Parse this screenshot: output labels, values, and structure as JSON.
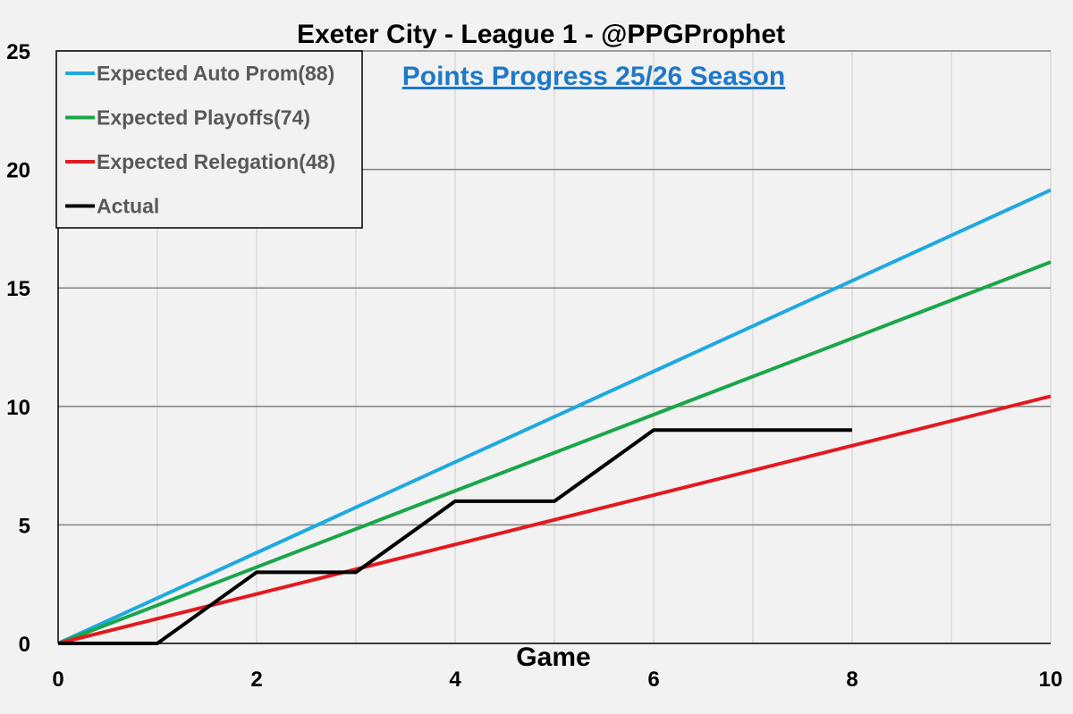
{
  "chart_data": {
    "type": "line",
    "title": "Exeter City - League 1 - @PPGProphet",
    "subtitle": "Points Progress 25/26 Season",
    "xlabel": "Game",
    "ylabel": "",
    "xlim": [
      0,
      10
    ],
    "ylim": [
      0,
      25
    ],
    "xticks": [
      0,
      2,
      4,
      6,
      8,
      10
    ],
    "yticks": [
      0,
      5,
      10,
      15,
      20,
      25
    ],
    "grid": true,
    "legend_position": "top-left",
    "series": [
      {
        "name": "Expected Auto Prom(88)",
        "color": "#1ea9e1",
        "x": [
          0,
          10
        ],
        "y": [
          0,
          19.13
        ]
      },
      {
        "name": "Expected Playoffs(74)",
        "color": "#1aa64a",
        "x": [
          0,
          10
        ],
        "y": [
          0,
          16.09
        ]
      },
      {
        "name": "Expected Relegation(48)",
        "color": "#e3191e",
        "x": [
          0,
          10
        ],
        "y": [
          0,
          10.43
        ]
      },
      {
        "name": "Actual",
        "color": "#000000",
        "x": [
          0,
          1,
          2,
          3,
          4,
          5,
          6,
          7,
          8
        ],
        "y": [
          0,
          0,
          3,
          3,
          6,
          6,
          9,
          9,
          9
        ]
      }
    ]
  }
}
